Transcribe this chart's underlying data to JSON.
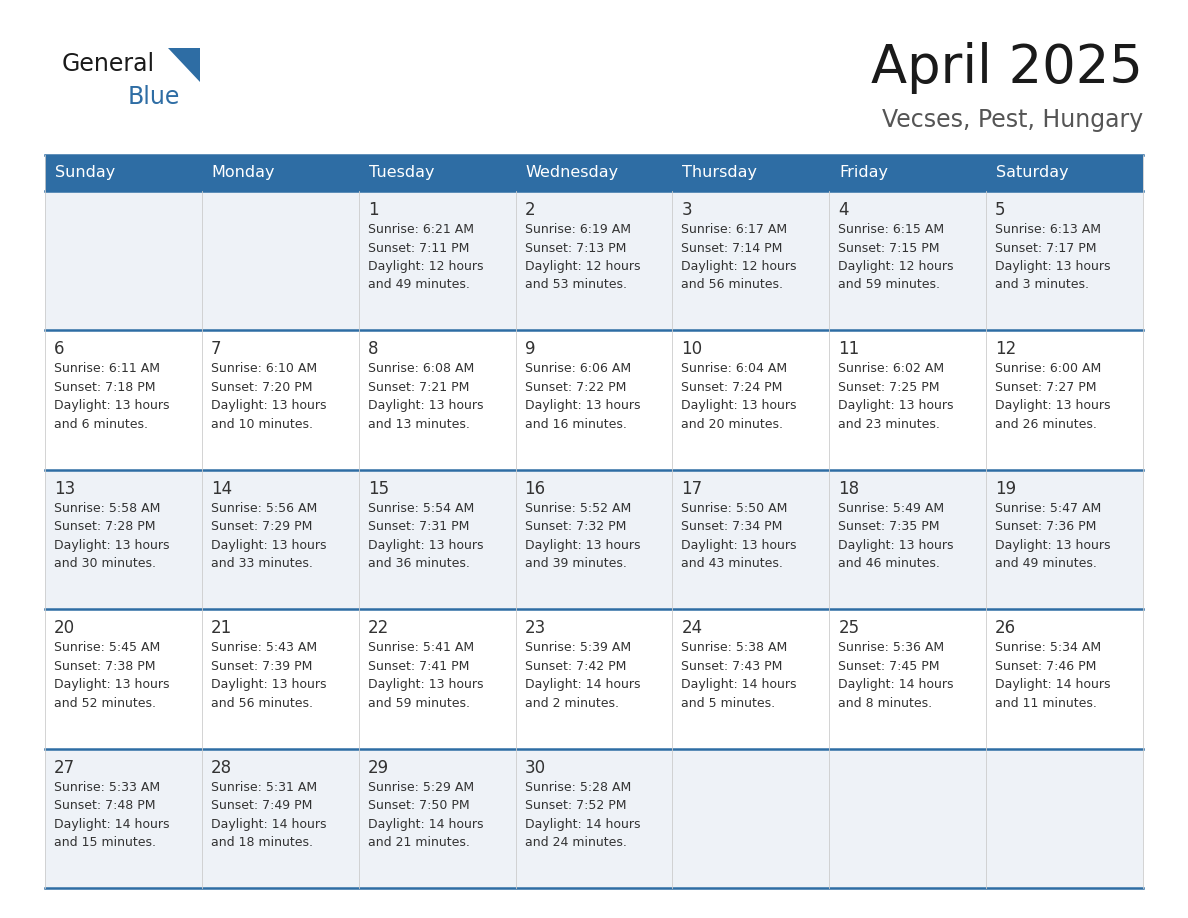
{
  "title": "April 2025",
  "subtitle": "Vecses, Pest, Hungary",
  "header_bg": "#2e6da4",
  "header_text_color": "#ffffff",
  "cell_bg_light": "#eef2f7",
  "cell_bg_white": "#ffffff",
  "row_line_color": "#2e6da4",
  "grid_line_color": "#cccccc",
  "text_color": "#333333",
  "days_of_week": [
    "Sunday",
    "Monday",
    "Tuesday",
    "Wednesday",
    "Thursday",
    "Friday",
    "Saturday"
  ],
  "weeks": [
    [
      {
        "day": "",
        "info": ""
      },
      {
        "day": "",
        "info": ""
      },
      {
        "day": "1",
        "info": "Sunrise: 6:21 AM\nSunset: 7:11 PM\nDaylight: 12 hours\nand 49 minutes."
      },
      {
        "day": "2",
        "info": "Sunrise: 6:19 AM\nSunset: 7:13 PM\nDaylight: 12 hours\nand 53 minutes."
      },
      {
        "day": "3",
        "info": "Sunrise: 6:17 AM\nSunset: 7:14 PM\nDaylight: 12 hours\nand 56 minutes."
      },
      {
        "day": "4",
        "info": "Sunrise: 6:15 AM\nSunset: 7:15 PM\nDaylight: 12 hours\nand 59 minutes."
      },
      {
        "day": "5",
        "info": "Sunrise: 6:13 AM\nSunset: 7:17 PM\nDaylight: 13 hours\nand 3 minutes."
      }
    ],
    [
      {
        "day": "6",
        "info": "Sunrise: 6:11 AM\nSunset: 7:18 PM\nDaylight: 13 hours\nand 6 minutes."
      },
      {
        "day": "7",
        "info": "Sunrise: 6:10 AM\nSunset: 7:20 PM\nDaylight: 13 hours\nand 10 minutes."
      },
      {
        "day": "8",
        "info": "Sunrise: 6:08 AM\nSunset: 7:21 PM\nDaylight: 13 hours\nand 13 minutes."
      },
      {
        "day": "9",
        "info": "Sunrise: 6:06 AM\nSunset: 7:22 PM\nDaylight: 13 hours\nand 16 minutes."
      },
      {
        "day": "10",
        "info": "Sunrise: 6:04 AM\nSunset: 7:24 PM\nDaylight: 13 hours\nand 20 minutes."
      },
      {
        "day": "11",
        "info": "Sunrise: 6:02 AM\nSunset: 7:25 PM\nDaylight: 13 hours\nand 23 minutes."
      },
      {
        "day": "12",
        "info": "Sunrise: 6:00 AM\nSunset: 7:27 PM\nDaylight: 13 hours\nand 26 minutes."
      }
    ],
    [
      {
        "day": "13",
        "info": "Sunrise: 5:58 AM\nSunset: 7:28 PM\nDaylight: 13 hours\nand 30 minutes."
      },
      {
        "day": "14",
        "info": "Sunrise: 5:56 AM\nSunset: 7:29 PM\nDaylight: 13 hours\nand 33 minutes."
      },
      {
        "day": "15",
        "info": "Sunrise: 5:54 AM\nSunset: 7:31 PM\nDaylight: 13 hours\nand 36 minutes."
      },
      {
        "day": "16",
        "info": "Sunrise: 5:52 AM\nSunset: 7:32 PM\nDaylight: 13 hours\nand 39 minutes."
      },
      {
        "day": "17",
        "info": "Sunrise: 5:50 AM\nSunset: 7:34 PM\nDaylight: 13 hours\nand 43 minutes."
      },
      {
        "day": "18",
        "info": "Sunrise: 5:49 AM\nSunset: 7:35 PM\nDaylight: 13 hours\nand 46 minutes."
      },
      {
        "day": "19",
        "info": "Sunrise: 5:47 AM\nSunset: 7:36 PM\nDaylight: 13 hours\nand 49 minutes."
      }
    ],
    [
      {
        "day": "20",
        "info": "Sunrise: 5:45 AM\nSunset: 7:38 PM\nDaylight: 13 hours\nand 52 minutes."
      },
      {
        "day": "21",
        "info": "Sunrise: 5:43 AM\nSunset: 7:39 PM\nDaylight: 13 hours\nand 56 minutes."
      },
      {
        "day": "22",
        "info": "Sunrise: 5:41 AM\nSunset: 7:41 PM\nDaylight: 13 hours\nand 59 minutes."
      },
      {
        "day": "23",
        "info": "Sunrise: 5:39 AM\nSunset: 7:42 PM\nDaylight: 14 hours\nand 2 minutes."
      },
      {
        "day": "24",
        "info": "Sunrise: 5:38 AM\nSunset: 7:43 PM\nDaylight: 14 hours\nand 5 minutes."
      },
      {
        "day": "25",
        "info": "Sunrise: 5:36 AM\nSunset: 7:45 PM\nDaylight: 14 hours\nand 8 minutes."
      },
      {
        "day": "26",
        "info": "Sunrise: 5:34 AM\nSunset: 7:46 PM\nDaylight: 14 hours\nand 11 minutes."
      }
    ],
    [
      {
        "day": "27",
        "info": "Sunrise: 5:33 AM\nSunset: 7:48 PM\nDaylight: 14 hours\nand 15 minutes."
      },
      {
        "day": "28",
        "info": "Sunrise: 5:31 AM\nSunset: 7:49 PM\nDaylight: 14 hours\nand 18 minutes."
      },
      {
        "day": "29",
        "info": "Sunrise: 5:29 AM\nSunset: 7:50 PM\nDaylight: 14 hours\nand 21 minutes."
      },
      {
        "day": "30",
        "info": "Sunrise: 5:28 AM\nSunset: 7:52 PM\nDaylight: 14 hours\nand 24 minutes."
      },
      {
        "day": "",
        "info": ""
      },
      {
        "day": "",
        "info": ""
      },
      {
        "day": "",
        "info": ""
      }
    ]
  ]
}
